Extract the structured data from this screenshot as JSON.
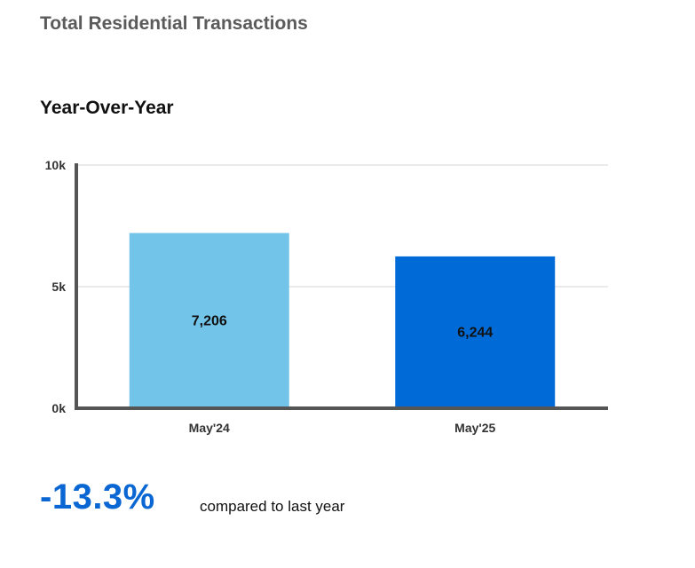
{
  "header": {
    "title": "Total Residential Transactions"
  },
  "section": {
    "subtitle": "Year-Over-Year"
  },
  "chart_data": {
    "type": "bar",
    "title": "Year-Over-Year",
    "categories": [
      "May'24",
      "May'25"
    ],
    "values": [
      7206,
      6244
    ],
    "value_labels": [
      "7,206",
      "6,244"
    ],
    "bar_colors": [
      "#72c4e8",
      "#006ad6"
    ],
    "ylim": [
      0,
      10000
    ],
    "yticks": [
      0,
      5000,
      10000
    ],
    "ytick_labels": [
      "0k",
      "5k",
      "10k"
    ],
    "grid": true,
    "xlabel": "",
    "ylabel": ""
  },
  "summary": {
    "change": "-13.3%",
    "change_color": "#0a66d2",
    "compare_text": "compared to last year"
  }
}
